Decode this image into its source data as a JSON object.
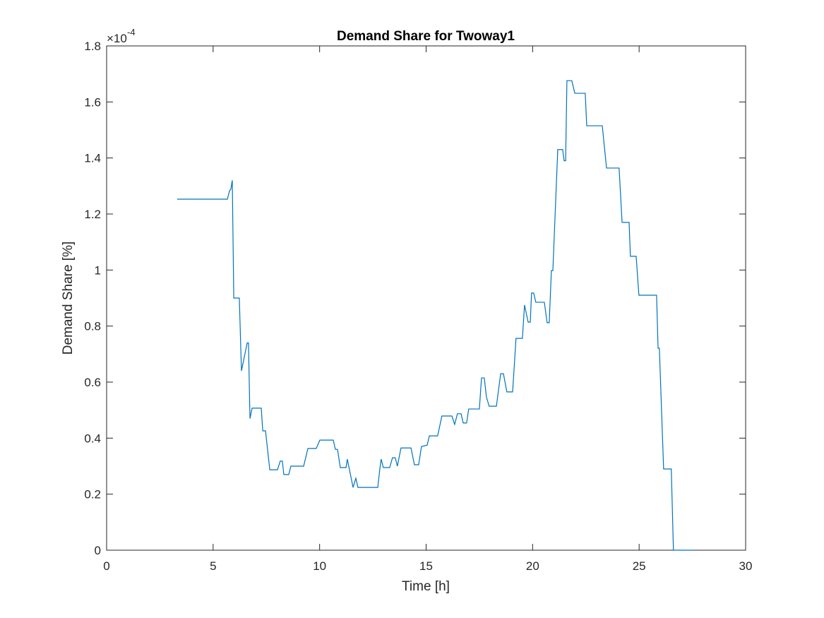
{
  "chart_data": {
    "type": "line",
    "title": "Demand Share for Twoway1",
    "xlabel": "Time [h]",
    "ylabel": "Demand Share [%]",
    "y_exponent_base": "×10",
    "y_exponent_power": "-4",
    "xlim": [
      0,
      30
    ],
    "xticks": [
      0,
      5,
      10,
      15,
      20,
      25,
      30
    ],
    "ylim": [
      0,
      1.8
    ],
    "yticks": [
      0,
      0.2,
      0.4,
      0.6,
      0.8,
      1,
      1.2,
      1.4,
      1.6,
      1.8
    ],
    "grid": false,
    "series": [
      {
        "name": "Twoway1",
        "color": "#0072bd",
        "x": [
          3.31,
          5.67,
          5.77,
          5.83,
          5.9,
          5.97,
          6.23,
          6.33,
          6.6,
          6.66,
          6.73,
          6.83,
          7.26,
          7.33,
          7.46,
          7.66,
          8.02,
          8.15,
          8.25,
          8.32,
          8.55,
          8.65,
          9.25,
          9.45,
          9.84,
          10.01,
          10.64,
          10.74,
          10.84,
          10.97,
          11.24,
          11.3,
          11.57,
          11.7,
          11.8,
          12.73,
          12.83,
          12.89,
          12.99,
          13.29,
          13.42,
          13.55,
          13.65,
          13.82,
          14.29,
          14.45,
          14.65,
          14.78,
          15.05,
          15.15,
          15.54,
          15.74,
          16.21,
          16.34,
          16.47,
          16.64,
          16.74,
          16.9,
          17.0,
          17.5,
          17.6,
          17.73,
          17.83,
          17.96,
          18.3,
          18.5,
          18.63,
          18.79,
          19.06,
          19.22,
          19.52,
          19.62,
          19.79,
          19.89,
          19.95,
          20.05,
          20.15,
          20.55,
          20.68,
          20.78,
          20.88,
          20.95,
          21.18,
          21.41,
          21.48,
          21.55,
          21.61,
          21.84,
          21.98,
          22.47,
          22.54,
          23.27,
          23.47,
          24.06,
          24.2,
          24.53,
          24.59,
          24.86,
          24.99,
          25.82,
          25.89,
          25.95,
          26.15,
          26.51,
          26.61,
          27.54
        ],
        "values": [
          1.253,
          1.253,
          1.283,
          1.288,
          1.32,
          0.9,
          0.9,
          0.64,
          0.74,
          0.74,
          0.47,
          0.507,
          0.507,
          0.426,
          0.426,
          0.287,
          0.287,
          0.318,
          0.318,
          0.27,
          0.27,
          0.3,
          0.3,
          0.363,
          0.363,
          0.393,
          0.393,
          0.36,
          0.36,
          0.295,
          0.295,
          0.325,
          0.224,
          0.257,
          0.224,
          0.224,
          0.292,
          0.325,
          0.295,
          0.295,
          0.33,
          0.33,
          0.3,
          0.365,
          0.365,
          0.305,
          0.305,
          0.37,
          0.375,
          0.408,
          0.408,
          0.479,
          0.479,
          0.449,
          0.487,
          0.487,
          0.454,
          0.454,
          0.504,
          0.504,
          0.615,
          0.615,
          0.547,
          0.514,
          0.514,
          0.63,
          0.63,
          0.565,
          0.565,
          0.756,
          0.756,
          0.875,
          0.814,
          0.814,
          0.918,
          0.918,
          0.885,
          0.885,
          0.812,
          0.812,
          0.998,
          0.998,
          1.43,
          1.43,
          1.39,
          1.39,
          1.676,
          1.676,
          1.631,
          1.631,
          1.515,
          1.515,
          1.364,
          1.364,
          1.17,
          1.17,
          1.049,
          1.049,
          0.91,
          0.91,
          0.721,
          0.721,
          0.29,
          0.29,
          0,
          0
        ]
      }
    ]
  }
}
